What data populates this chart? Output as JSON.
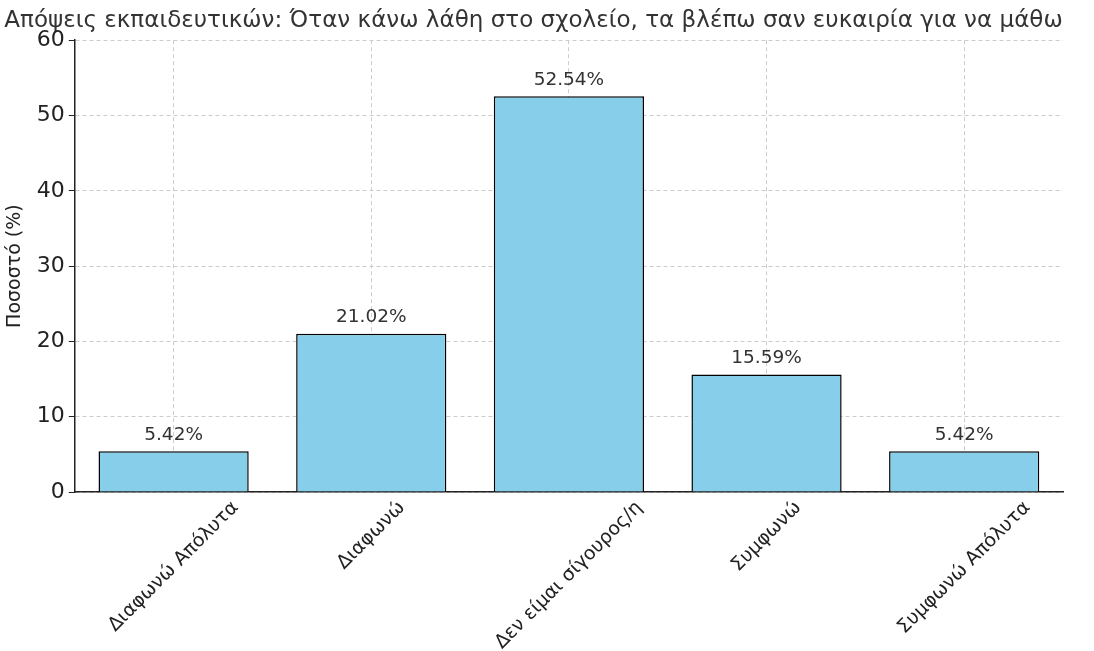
{
  "chart_data": {
    "type": "bar",
    "title": "Απόψεις εκπαιδευτικών: Όταν κάνω λάθη στο σχολείο, τα βλέπω σαν ευκαιρία για να μάθω",
    "ylabel": "Ποσοστό (%)",
    "categories": [
      "Διαφωνώ Απόλυτα",
      "Διαφωνώ",
      "Δεν είμαι σίγουρος/η",
      "Συμφωνώ",
      "Συμφωνώ Απόλυτα"
    ],
    "values": [
      5.42,
      21.02,
      52.54,
      15.59,
      5.42
    ],
    "color": "#87ceeb",
    "value_labels": [
      "5.42%",
      "21.02%",
      "52.54%",
      "15.59%",
      "5.42%"
    ],
    "ylim": [
      0,
      60
    ],
    "yticks": [
      0,
      10,
      20,
      30,
      40,
      50,
      60
    ],
    "grid": true
  }
}
